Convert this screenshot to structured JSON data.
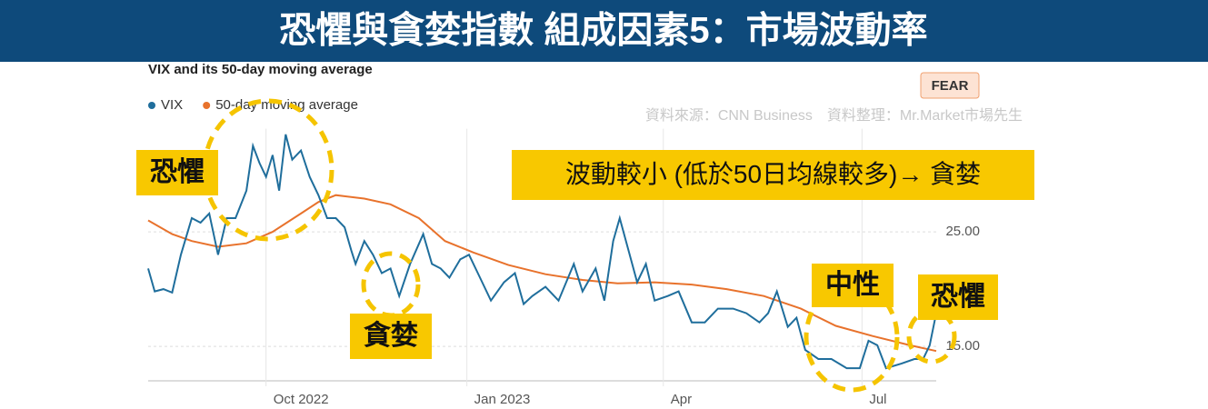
{
  "chart_data": {
    "type": "line",
    "title": "恐懼與貪婪指數 組成因素5：市場波動率",
    "subtitle": "VIX and its 50-day moving average",
    "badge": "FEAR",
    "source": "資料來源：CNN Business　資料整理：Mr.Market市場先生",
    "annotations": [
      "恐懼",
      "貪婪",
      "中性",
      "恐懼",
      "波動較小 (低於50日均線較多)→ 貪婪"
    ],
    "xlim": [
      0,
      361
    ],
    "xticks": [
      {
        "value": 54,
        "label": "Oct 2022"
      },
      {
        "value": 146,
        "label": "Jan 2023"
      },
      {
        "value": 236,
        "label": "Apr"
      },
      {
        "value": 327,
        "label": "Jul"
      }
    ],
    "ylim": [
      12,
      34
    ],
    "yticks": [
      {
        "value": 15,
        "label": "15.00"
      },
      {
        "value": 25,
        "label": "25.00"
      }
    ],
    "grid": true,
    "series": [
      {
        "name": "VIX",
        "color": "#1f6e9c",
        "x": [
          0,
          3,
          7,
          11,
          15,
          20,
          24,
          28,
          32,
          36,
          40,
          45,
          48,
          51,
          54,
          57,
          60,
          63,
          66,
          70,
          74,
          78,
          82,
          86,
          90,
          93,
          95,
          99,
          103,
          107,
          111,
          115,
          120,
          126,
          130,
          134,
          138,
          143,
          147,
          151,
          157,
          163,
          168,
          172,
          176,
          182,
          188,
          195,
          199,
          205,
          209,
          213,
          216,
          220,
          224,
          228,
          232,
          238,
          243,
          249,
          255,
          261,
          268,
          274,
          280,
          284,
          288,
          293,
          297,
          301,
          307,
          313,
          320,
          326,
          330,
          334,
          338,
          345,
          351,
          355,
          358,
          361
        ],
        "values": [
          21.8,
          19.8,
          20.0,
          19.7,
          23.0,
          26.2,
          25.8,
          26.6,
          23.0,
          26.2,
          26.2,
          28.6,
          32.5,
          31.0,
          29.8,
          31.7,
          28.6,
          33.5,
          31.3,
          32.1,
          29.8,
          28.2,
          26.2,
          26.2,
          25.4,
          23.4,
          22.2,
          24.2,
          23.0,
          21.4,
          21.8,
          19.4,
          22.2,
          24.8,
          22.2,
          21.8,
          21.0,
          22.6,
          23.0,
          21.4,
          19.0,
          20.6,
          21.4,
          18.7,
          19.4,
          20.2,
          19.0,
          22.2,
          19.8,
          21.8,
          19.0,
          24.2,
          26.2,
          23.4,
          20.6,
          22.2,
          19.0,
          19.4,
          19.8,
          17.1,
          17.1,
          18.3,
          18.3,
          17.9,
          17.1,
          17.9,
          19.8,
          16.7,
          17.5,
          14.7,
          13.9,
          13.9,
          13.1,
          13.1,
          15.5,
          15.1,
          13.1,
          13.5,
          13.9,
          13.9,
          15.1,
          17.9
        ]
      },
      {
        "name": "50-day moving average",
        "color": "#e8722c",
        "x": [
          0,
          11,
          20,
          32,
          45,
          57,
          70,
          78,
          86,
          99,
          111,
          124,
          136,
          149,
          165,
          182,
          199,
          215,
          232,
          249,
          265,
          282,
          299,
          315,
          332,
          349,
          361
        ],
        "values": [
          26.0,
          24.8,
          24.2,
          23.7,
          24.0,
          25.0,
          26.6,
          27.6,
          28.2,
          27.9,
          27.4,
          26.2,
          24.2,
          23.2,
          22.1,
          21.3,
          20.8,
          20.5,
          20.6,
          20.4,
          20.0,
          19.4,
          18.3,
          16.8,
          15.9,
          15.1,
          14.6
        ]
      }
    ]
  }
}
